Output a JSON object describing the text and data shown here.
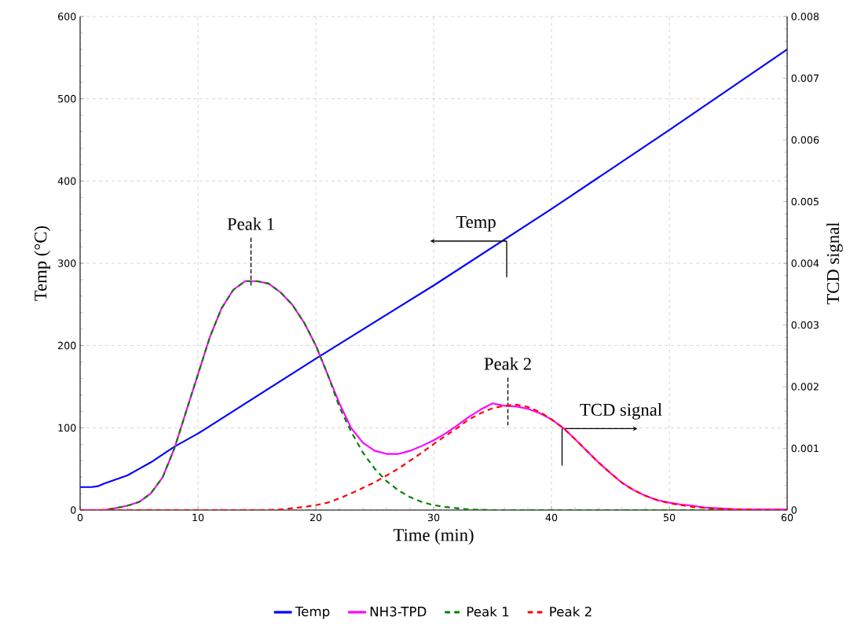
{
  "chart_data": {
    "type": "line",
    "xlabel": "Time (min)",
    "ylabel": "Temp (°C)",
    "y2label": "TCD signal",
    "xlim": [
      0,
      60
    ],
    "xticks": [
      0,
      10,
      20,
      30,
      40,
      50,
      60
    ],
    "ylim": [
      0,
      600
    ],
    "yticks": [
      0,
      100,
      200,
      300,
      400,
      500,
      600
    ],
    "y2lim": [
      0,
      0.008
    ],
    "y2ticks": [
      0,
      0.001,
      0.002,
      0.003,
      0.004,
      0.005,
      0.006,
      0.007,
      0.008
    ],
    "grid": true,
    "legend": "bottom",
    "marker": "none",
    "annotations": [
      "Peak 1",
      "Peak 2",
      "Temp",
      "TCD signal"
    ],
    "series": [
      {
        "name": "Temp",
        "color": "#0000ff",
        "line_style": "solid",
        "x": [
          0,
          1,
          1.5,
          2,
          3,
          4,
          5,
          6,
          8,
          10,
          20,
          30,
          40,
          50,
          60
        ],
        "values": [
          28,
          28,
          29,
          32,
          37,
          42,
          50,
          58,
          77,
          93,
          184,
          273,
          366,
          462,
          560
        ]
      },
      {
        "name": "NH3-TPD",
        "color": "#ff00ff",
        "line_style": "solid",
        "axis": "y2",
        "x": [
          0,
          2,
          3,
          4,
          5,
          6,
          7,
          8,
          9,
          10,
          11,
          12,
          13,
          14,
          15,
          16,
          17,
          18,
          19,
          20,
          21,
          22,
          23,
          24,
          25,
          26,
          27,
          28,
          29,
          30,
          31,
          32,
          33,
          34,
          35,
          36,
          37,
          38,
          39,
          40,
          41,
          42,
          43,
          44,
          45,
          46,
          47,
          48,
          49,
          50,
          51,
          52,
          53,
          54,
          56,
          58,
          60
        ],
        "values": [
          0,
          0,
          3e-05,
          7e-05,
          0.00013,
          0.00027,
          0.00053,
          0.001,
          0.0016,
          0.0022,
          0.0028,
          0.00327,
          0.00357,
          0.00371,
          0.00371,
          0.00367,
          0.00353,
          0.00333,
          0.00304,
          0.00267,
          0.0022,
          0.00173,
          0.00133,
          0.00109,
          0.00096,
          0.00091,
          0.00091,
          0.00096,
          0.00104,
          0.00113,
          0.00124,
          0.00137,
          0.00151,
          0.00163,
          0.00173,
          0.00169,
          0.00168,
          0.00164,
          0.00157,
          0.00147,
          0.00133,
          0.00115,
          0.00096,
          0.00077,
          0.0006,
          0.00044,
          0.00032,
          0.00023,
          0.00016,
          0.00012,
          9e-05,
          7e-05,
          4e-05,
          3e-05,
          1e-05,
          1e-05,
          1e-05
        ]
      },
      {
        "name": "Peak 1",
        "color": "#008000",
        "line_style": "dashed",
        "axis": "y2",
        "x": [
          0,
          2,
          3,
          4,
          5,
          6,
          7,
          8,
          9,
          10,
          11,
          12,
          13,
          14,
          15,
          16,
          17,
          18,
          19,
          20,
          21,
          22,
          23,
          24,
          25,
          26,
          27,
          28,
          29,
          30,
          31,
          32,
          33,
          35,
          60
        ],
        "values": [
          0,
          0,
          3e-05,
          7e-05,
          0.00013,
          0.00027,
          0.00053,
          0.001,
          0.0016,
          0.0022,
          0.0028,
          0.00327,
          0.00357,
          0.00371,
          0.00371,
          0.00367,
          0.00353,
          0.00333,
          0.00304,
          0.00267,
          0.0022,
          0.00167,
          0.00127,
          0.00093,
          0.00067,
          0.00047,
          0.00032,
          0.00021,
          0.00013,
          8e-05,
          5e-05,
          3e-05,
          1e-05,
          0,
          0
        ]
      },
      {
        "name": "Peak 2",
        "color": "#ff0000",
        "line_style": "dashed",
        "axis": "y2",
        "x": [
          0,
          16,
          17,
          18,
          19,
          20,
          21,
          22,
          23,
          24,
          25,
          26,
          27,
          28,
          29,
          30,
          31,
          32,
          33,
          34,
          35,
          36,
          37,
          38,
          39,
          40,
          41,
          42,
          43,
          44,
          45,
          46,
          47,
          48,
          49,
          50,
          52,
          54,
          56,
          60
        ],
        "values": [
          0,
          0,
          1e-05,
          3e-05,
          5e-05,
          8e-05,
          0.00012,
          0.00019,
          0.00027,
          0.00036,
          0.00045,
          0.00056,
          0.00067,
          0.0008,
          0.00093,
          0.00107,
          0.0012,
          0.00133,
          0.00147,
          0.00157,
          0.00165,
          0.00169,
          0.00171,
          0.00167,
          0.00159,
          0.00147,
          0.00133,
          0.00115,
          0.00096,
          0.00077,
          0.0006,
          0.00044,
          0.00032,
          0.00023,
          0.00016,
          0.00011,
          5e-05,
          2e-05,
          1e-05,
          0
        ]
      }
    ]
  }
}
